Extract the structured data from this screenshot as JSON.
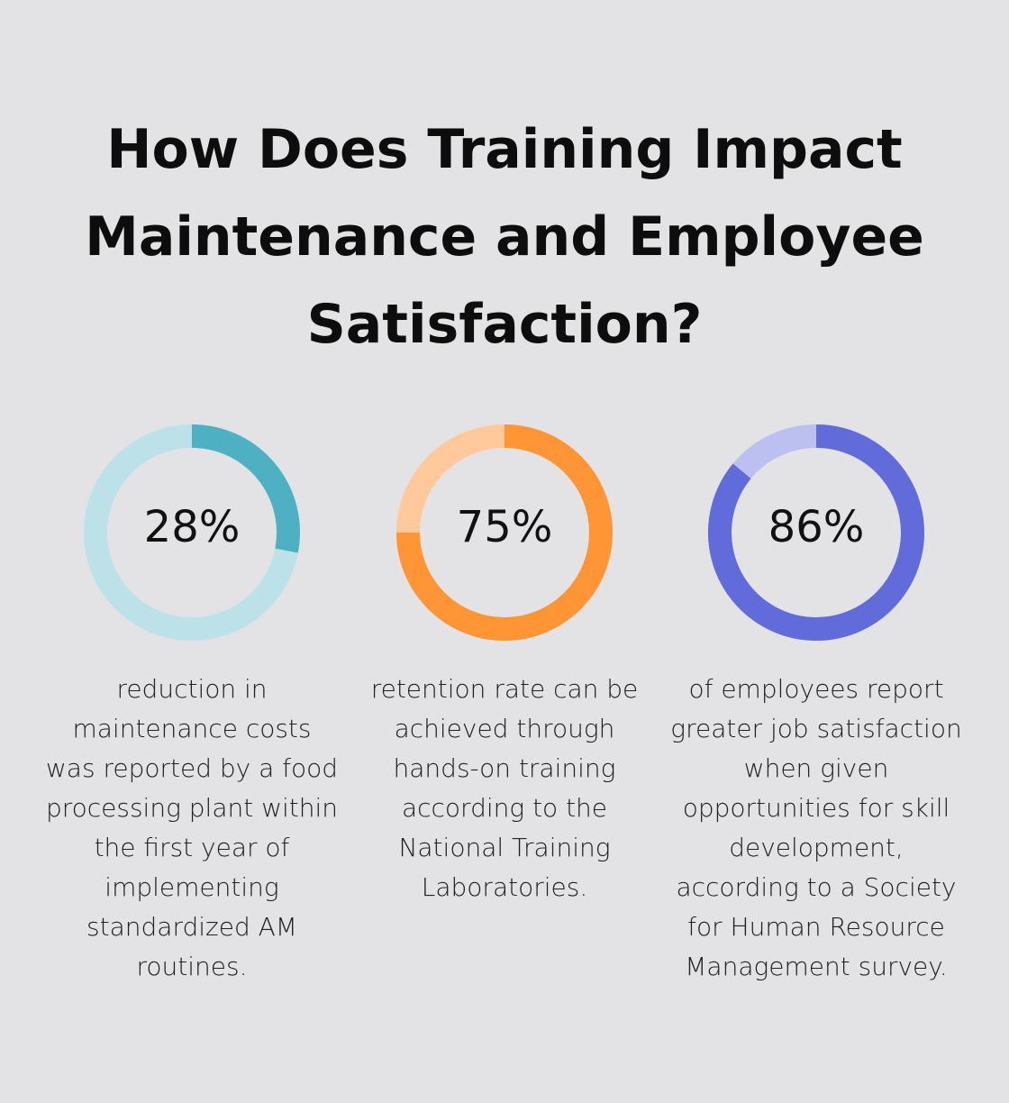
{
  "title_line1": "How Does Training Impact",
  "title_line2": "Maintenance and Employee",
  "title_line3": "Satisfaction?",
  "chart_data": {
    "type": "donut",
    "items": [
      {
        "value": 28,
        "label": "28%",
        "description": "reduction in maintenance costs was reported by a food processing plant within the first year of implementing standardized AM routines.",
        "color": "#4eb1c3",
        "track_color": "#bde1e9"
      },
      {
        "value": 75,
        "label": "75%",
        "description": "retention rate can be achieved through hands-on training according to the National Training Laboratories.",
        "color": "#ff9535",
        "track_color": "#ffc99c"
      },
      {
        "value": 86,
        "label": "86%",
        "description": "of employees report greater job satisfaction when given opportunities for skill development, according to a Society for Human Resource Management survey.",
        "color": "#616bd9",
        "track_color": "#bcc0f1"
      }
    ]
  }
}
